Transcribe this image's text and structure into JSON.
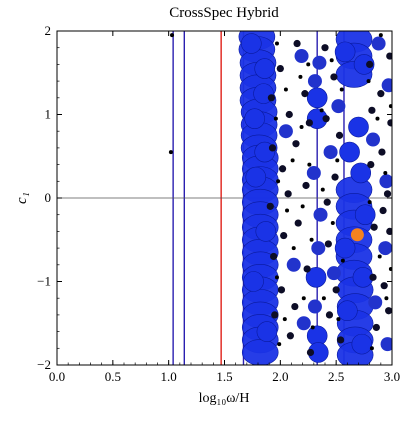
{
  "chart_data": {
    "type": "scatter",
    "title": "CrossSpec Hybrid",
    "xlabel": "log₁₀ω/H",
    "ylabel": "c₁",
    "xlim": [
      0.0,
      3.0
    ],
    "ylim": [
      -2,
      2
    ],
    "x_ticks": [
      "0.0",
      "0.5",
      "1.0",
      "1.5",
      "2.0",
      "2.5",
      "3.0"
    ],
    "y_ticks": [
      "−2",
      "−1",
      "0",
      "1",
      "2"
    ],
    "x_tick_values": [
      0.0,
      0.5,
      1.0,
      1.5,
      2.0,
      2.5,
      3.0
    ],
    "y_tick_values": [
      -2,
      -1,
      0,
      1,
      2
    ],
    "grid": false,
    "reference_line_y": 0,
    "vertical_lines": [
      {
        "x": 1.04,
        "color": "#2a1fb0"
      },
      {
        "x": 1.14,
        "color": "#2a1fb0"
      },
      {
        "x": 1.47,
        "color": "#e0201a"
      },
      {
        "x": 1.67,
        "color": "#2a1fb0"
      },
      {
        "x": 2.33,
        "color": "#2a1fb0"
      },
      {
        "x": 2.57,
        "color": "#2a1fb0"
      }
    ],
    "series": [
      {
        "marker_size": "blob",
        "color": "#1a33e6",
        "points": [
          {
            "x": 1.79,
            "y": 1.93
          },
          {
            "x": 1.79,
            "y": 1.78
          },
          {
            "x": 1.8,
            "y": 1.62
          },
          {
            "x": 1.8,
            "y": 1.47
          },
          {
            "x": 1.8,
            "y": 1.32
          },
          {
            "x": 1.8,
            "y": 1.17
          },
          {
            "x": 1.81,
            "y": 1.03
          },
          {
            "x": 1.81,
            "y": 0.88
          },
          {
            "x": 1.81,
            "y": 0.75
          },
          {
            "x": 1.81,
            "y": 0.6
          },
          {
            "x": 1.82,
            "y": 0.48
          },
          {
            "x": 1.82,
            "y": 0.35
          },
          {
            "x": 1.82,
            "y": 0.22
          },
          {
            "x": 1.82,
            "y": 0.1
          },
          {
            "x": 1.82,
            "y": -0.05
          },
          {
            "x": 1.82,
            "y": -0.2
          },
          {
            "x": 1.82,
            "y": -0.35
          },
          {
            "x": 1.82,
            "y": -0.5
          },
          {
            "x": 1.82,
            "y": -0.65
          },
          {
            "x": 1.82,
            "y": -0.8
          },
          {
            "x": 1.82,
            "y": -0.95
          },
          {
            "x": 1.82,
            "y": -1.1
          },
          {
            "x": 1.82,
            "y": -1.25
          },
          {
            "x": 1.82,
            "y": -1.4
          },
          {
            "x": 1.82,
            "y": -1.55
          },
          {
            "x": 1.82,
            "y": -1.7
          },
          {
            "x": 1.82,
            "y": -1.85
          },
          {
            "x": 2.66,
            "y": 1.9
          },
          {
            "x": 2.66,
            "y": 1.7
          },
          {
            "x": 2.66,
            "y": 1.48
          },
          {
            "x": 2.66,
            "y": 0.1
          },
          {
            "x": 2.66,
            "y": -0.1
          },
          {
            "x": 2.66,
            "y": -0.3
          },
          {
            "x": 2.66,
            "y": -0.5
          },
          {
            "x": 2.66,
            "y": -0.7
          },
          {
            "x": 2.66,
            "y": -0.9
          },
          {
            "x": 2.67,
            "y": -1.1
          },
          {
            "x": 2.67,
            "y": -1.3
          },
          {
            "x": 2.67,
            "y": -1.5
          },
          {
            "x": 2.67,
            "y": -1.7
          },
          {
            "x": 2.67,
            "y": -1.88
          }
        ]
      },
      {
        "marker_size": "large",
        "color": "#1a33e6",
        "points": [
          {
            "x": 1.74,
            "y": 1.85
          },
          {
            "x": 1.86,
            "y": 1.55
          },
          {
            "x": 1.85,
            "y": 1.25
          },
          {
            "x": 1.77,
            "y": 0.95
          },
          {
            "x": 1.86,
            "y": 0.55
          },
          {
            "x": 1.78,
            "y": 0.25
          },
          {
            "x": 1.87,
            "y": -0.4
          },
          {
            "x": 1.76,
            "y": -1.0
          },
          {
            "x": 1.88,
            "y": -1.6
          },
          {
            "x": 2.7,
            "y": 0.85
          },
          {
            "x": 2.62,
            "y": 0.55
          },
          {
            "x": 2.72,
            "y": 0.3
          },
          {
            "x": 2.76,
            "y": -0.2
          },
          {
            "x": 2.58,
            "y": -0.6
          },
          {
            "x": 2.74,
            "y": -0.95
          },
          {
            "x": 2.6,
            "y": -1.35
          },
          {
            "x": 2.73,
            "y": -1.75
          },
          {
            "x": 2.75,
            "y": 1.6
          },
          {
            "x": 2.58,
            "y": 1.75
          },
          {
            "x": 2.33,
            "y": 1.2
          },
          {
            "x": 2.33,
            "y": 0.95
          },
          {
            "x": 2.32,
            "y": -0.95
          },
          {
            "x": 2.33,
            "y": -1.65
          },
          {
            "x": 2.34,
            "y": -1.85
          }
        ]
      },
      {
        "marker_size": "medium",
        "color": "#2233cc",
        "points": [
          {
            "x": 2.35,
            "y": 1.62
          },
          {
            "x": 2.31,
            "y": 1.4
          },
          {
            "x": 2.3,
            "y": 0.3
          },
          {
            "x": 2.36,
            "y": -0.2
          },
          {
            "x": 2.34,
            "y": -0.6
          },
          {
            "x": 2.31,
            "y": -1.3
          },
          {
            "x": 2.97,
            "y": 1.35
          },
          {
            "x": 2.94,
            "y": -0.6
          },
          {
            "x": 2.96,
            "y": -1.75
          },
          {
            "x": 2.83,
            "y": 0.7
          },
          {
            "x": 2.85,
            "y": -1.25
          },
          {
            "x": 2.19,
            "y": 1.7
          },
          {
            "x": 2.21,
            "y": -1.5
          },
          {
            "x": 2.05,
            "y": 0.8
          },
          {
            "x": 2.12,
            "y": -0.8
          },
          {
            "x": 2.45,
            "y": 0.55
          },
          {
            "x": 2.48,
            "y": -0.9
          },
          {
            "x": 2.52,
            "y": 1.1
          },
          {
            "x": 2.95,
            "y": 0.2
          },
          {
            "x": 2.88,
            "y": 1.85
          }
        ]
      },
      {
        "marker_size": "small",
        "color": "#0d0d26",
        "points": [
          {
            "x": 1.92,
            "y": 1.2
          },
          {
            "x": 1.93,
            "y": 0.6
          },
          {
            "x": 1.91,
            "y": -0.1
          },
          {
            "x": 1.94,
            "y": -0.7
          },
          {
            "x": 1.95,
            "y": -1.4
          },
          {
            "x": 2.0,
            "y": 1.55
          },
          {
            "x": 2.02,
            "y": 0.35
          },
          {
            "x": 2.03,
            "y": -0.45
          },
          {
            "x": 2.01,
            "y": -1.1
          },
          {
            "x": 2.08,
            "y": 1.0
          },
          {
            "x": 2.07,
            "y": 0.05
          },
          {
            "x": 2.09,
            "y": -1.65
          },
          {
            "x": 2.15,
            "y": 1.85
          },
          {
            "x": 2.14,
            "y": 0.65
          },
          {
            "x": 2.16,
            "y": -0.3
          },
          {
            "x": 2.13,
            "y": -1.3
          },
          {
            "x": 2.22,
            "y": 1.25
          },
          {
            "x": 2.23,
            "y": 0.15
          },
          {
            "x": 2.24,
            "y": -0.85
          },
          {
            "x": 2.26,
            "y": 0.9
          },
          {
            "x": 2.27,
            "y": -1.85
          },
          {
            "x": 2.4,
            "y": 1.8
          },
          {
            "x": 2.41,
            "y": 0.95
          },
          {
            "x": 2.42,
            "y": -0.05
          },
          {
            "x": 2.43,
            "y": -0.55
          },
          {
            "x": 2.44,
            "y": -1.4
          },
          {
            "x": 2.48,
            "y": 1.45
          },
          {
            "x": 2.49,
            "y": 0.25
          },
          {
            "x": 2.5,
            "y": -1.1
          },
          {
            "x": 2.53,
            "y": 0.75
          },
          {
            "x": 2.54,
            "y": -1.7
          },
          {
            "x": 2.8,
            "y": 1.6
          },
          {
            "x": 2.82,
            "y": 1.05
          },
          {
            "x": 2.81,
            "y": 0.4
          },
          {
            "x": 2.84,
            "y": -0.35
          },
          {
            "x": 2.83,
            "y": -0.95
          },
          {
            "x": 2.86,
            "y": -1.55
          },
          {
            "x": 2.9,
            "y": 1.25
          },
          {
            "x": 2.91,
            "y": 0.55
          },
          {
            "x": 2.92,
            "y": -0.15
          },
          {
            "x": 2.93,
            "y": -1.05
          },
          {
            "x": 2.98,
            "y": 1.7
          },
          {
            "x": 2.99,
            "y": 0.9
          },
          {
            "x": 2.98,
            "y": -0.4
          },
          {
            "x": 2.97,
            "y": -1.35
          },
          {
            "x": 2.96,
            "y": 0.05
          }
        ]
      },
      {
        "marker_size": "tiny",
        "color": "#000000",
        "points": [
          {
            "x": 1.03,
            "y": 1.95
          },
          {
            "x": 1.02,
            "y": 0.55
          },
          {
            "x": 1.97,
            "y": 1.85
          },
          {
            "x": 1.96,
            "y": 0.95
          },
          {
            "x": 1.98,
            "y": 0.2
          },
          {
            "x": 1.97,
            "y": -0.95
          },
          {
            "x": 1.99,
            "y": -1.75
          },
          {
            "x": 2.05,
            "y": 1.3
          },
          {
            "x": 2.06,
            "y": -0.15
          },
          {
            "x": 2.04,
            "y": -1.45
          },
          {
            "x": 2.11,
            "y": 0.45
          },
          {
            "x": 2.12,
            "y": -0.6
          },
          {
            "x": 2.18,
            "y": 1.45
          },
          {
            "x": 2.19,
            "y": 0.85
          },
          {
            "x": 2.2,
            "y": -0.1
          },
          {
            "x": 2.21,
            "y": -1.2
          },
          {
            "x": 2.25,
            "y": 1.6
          },
          {
            "x": 2.26,
            "y": 0.4
          },
          {
            "x": 2.28,
            "y": -0.5
          },
          {
            "x": 2.29,
            "y": -1.55
          },
          {
            "x": 2.37,
            "y": 1.05
          },
          {
            "x": 2.38,
            "y": 0.1
          },
          {
            "x": 2.39,
            "y": -1.2
          },
          {
            "x": 2.46,
            "y": 1.65
          },
          {
            "x": 2.47,
            "y": -0.3
          },
          {
            "x": 2.51,
            "y": 0.45
          },
          {
            "x": 2.52,
            "y": -1.45
          },
          {
            "x": 2.55,
            "y": 1.3
          },
          {
            "x": 2.56,
            "y": -0.75
          },
          {
            "x": 2.79,
            "y": 1.4
          },
          {
            "x": 2.8,
            "y": -0.05
          },
          {
            "x": 2.82,
            "y": -1.8
          },
          {
            "x": 2.87,
            "y": 0.95
          },
          {
            "x": 2.89,
            "y": -0.7
          },
          {
            "x": 2.9,
            "y": 1.95
          },
          {
            "x": 2.94,
            "y": 0.3
          },
          {
            "x": 2.95,
            "y": -1.2
          },
          {
            "x": 2.99,
            "y": 1.1
          },
          {
            "x": 2.99,
            "y": -0.85
          }
        ]
      }
    ],
    "highlight_point": {
      "x": 2.69,
      "y": -0.44,
      "color": "#f5821f"
    }
  }
}
